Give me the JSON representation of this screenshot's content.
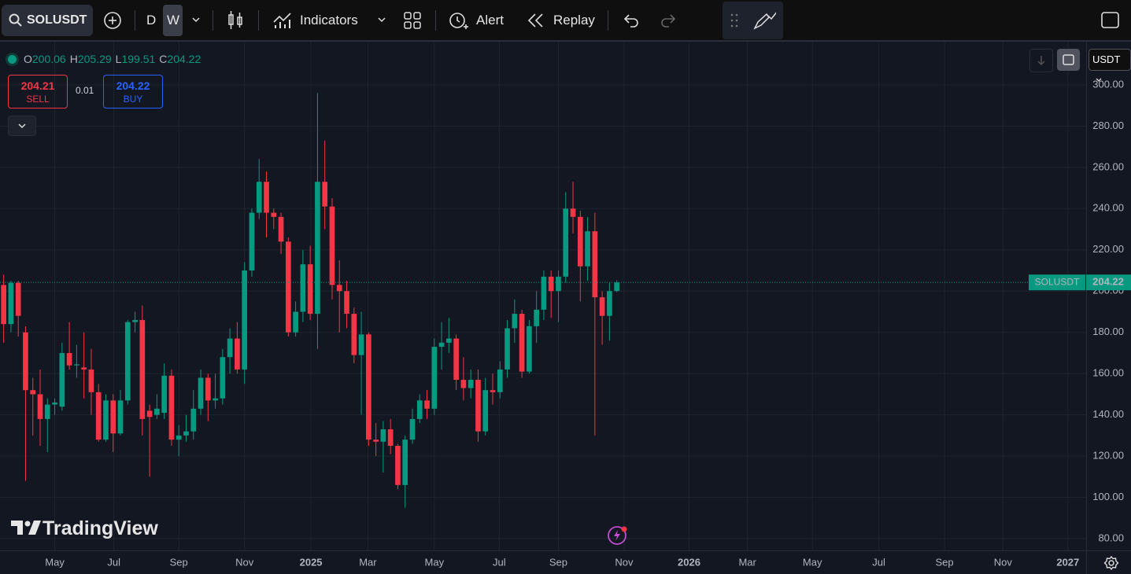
{
  "toolbar": {
    "symbol": "SOLUSDT",
    "intervals": [
      "D",
      "W"
    ],
    "indicators": "Indicators",
    "alert": "Alert",
    "replay": "Replay"
  },
  "trade": {
    "sell_price": 204.21,
    "sell": "SELL",
    "spread": 0.01,
    "buy_price": 204.22,
    "buy": "BUY"
  },
  "currency": "USDT",
  "watermark": "TradingView",
  "chart_data": {
    "type": "candlestick",
    "ohlc_labels": [
      "O",
      "H",
      "L",
      "C"
    ],
    "up_color": "#089981",
    "down_color": "#f23645",
    "open": [
      203,
      184,
      204,
      180,
      152,
      150,
      138,
      145,
      144,
      170,
      164,
      163,
      162,
      151,
      128,
      147,
      131,
      147,
      185,
      186,
      142,
      140,
      141,
      159,
      128,
      130,
      132,
      143,
      158,
      147,
      148,
      168,
      177,
      162,
      210,
      238,
      253,
      238,
      236,
      224,
      180,
      190,
      213,
      189,
      253,
      241,
      203,
      200,
      189,
      169,
      179,
      128,
      127,
      133,
      125,
      106,
      128,
      138,
      147,
      143,
      173,
      175,
      177,
      157,
      153,
      157,
      132,
      152,
      151,
      162,
      182,
      189,
      161,
      183,
      191,
      207,
      200,
      207,
      240,
      236,
      212,
      229,
      197,
      188,
      200.06
    ],
    "high": [
      208,
      205,
      205,
      183,
      158,
      162,
      148,
      148,
      175,
      185,
      174,
      180,
      172,
      155,
      150,
      150,
      152,
      186,
      190,
      193,
      145,
      150,
      165,
      162,
      135,
      140,
      152,
      162,
      160,
      160,
      172,
      182,
      185,
      214,
      240,
      264,
      258,
      240,
      238,
      226,
      195,
      220,
      222,
      296,
      273,
      245,
      215,
      205,
      192,
      190,
      180,
      136,
      137,
      138,
      126,
      130,
      143,
      150,
      152,
      177,
      185,
      187,
      179,
      168,
      162,
      162,
      158,
      160,
      166,
      186,
      196,
      191,
      186,
      200,
      210,
      210,
      210,
      248,
      253,
      239,
      236,
      238,
      200,
      204,
      205.29
    ],
    "low": [
      175,
      180,
      178,
      108,
      130,
      125,
      122,
      140,
      142,
      162,
      158,
      148,
      140,
      127,
      127,
      122,
      130,
      145,
      180,
      130,
      110,
      138,
      138,
      125,
      120,
      127,
      128,
      140,
      137,
      143,
      145,
      160,
      160,
      155,
      207,
      235,
      226,
      230,
      218,
      178,
      178,
      185,
      186,
      172,
      230,
      196,
      180,
      182,
      165,
      140,
      125,
      120,
      112,
      121,
      104,
      95,
      126,
      136,
      138,
      140,
      162,
      170,
      152,
      147,
      148,
      127,
      130,
      145,
      148,
      158,
      175,
      158,
      160,
      175,
      186,
      187,
      185,
      204,
      228,
      195,
      205,
      130,
      174,
      176,
      199.51
    ],
    "close": [
      184,
      204,
      188,
      152,
      150,
      138,
      145,
      146,
      170,
      164,
      164.5,
      162,
      151,
      128,
      147,
      131,
      147,
      185,
      186,
      138,
      139,
      143,
      159,
      128,
      130,
      132,
      143,
      158,
      147,
      148,
      168,
      177,
      162,
      210,
      238,
      253,
      238,
      236,
      224,
      180,
      190,
      213,
      189,
      253,
      241,
      203,
      200,
      189,
      169,
      179,
      128,
      127,
      133,
      125,
      106,
      128,
      138,
      147,
      143,
      173,
      175,
      177,
      157,
      153,
      157,
      132,
      152,
      151,
      162,
      182,
      189,
      161,
      183,
      191,
      207,
      200,
      207,
      240,
      236,
      212,
      229,
      197,
      188,
      200,
      204.22
    ],
    "xlim": [
      -0.5,
      148.3
    ],
    "xticks": [
      {
        "value": 7.0,
        "label": "May"
      },
      {
        "value": 15.1,
        "label": "Jul"
      },
      {
        "value": 24.0,
        "label": "Sep"
      },
      {
        "value": 33.0,
        "label": "Nov"
      },
      {
        "value": 42.1,
        "label": "2025"
      },
      {
        "value": 49.9,
        "label": "Mar"
      },
      {
        "value": 59.0,
        "label": "May"
      },
      {
        "value": 67.9,
        "label": "Jul"
      },
      {
        "value": 76.0,
        "label": "Sep"
      },
      {
        "value": 85.0,
        "label": "Nov"
      },
      {
        "value": 93.9,
        "label": "2026"
      },
      {
        "value": 101.9,
        "label": "Mar"
      },
      {
        "value": 110.8,
        "label": "May"
      },
      {
        "value": 119.9,
        "label": "Jul"
      },
      {
        "value": 128.9,
        "label": "Sep"
      },
      {
        "value": 136.9,
        "label": "Nov"
      },
      {
        "value": 145.8,
        "label": "2027"
      }
    ],
    "ylim": [
      74.3,
      319.4
    ],
    "yticks": [
      {
        "value": 80,
        "label": "80.00"
      },
      {
        "value": 100,
        "label": "100.00"
      },
      {
        "value": 120,
        "label": "120.00"
      },
      {
        "value": 140,
        "label": "140.00"
      },
      {
        "value": 160,
        "label": "160.00"
      },
      {
        "value": 180,
        "label": "180.00"
      },
      {
        "value": 200,
        "label": "200.00"
      },
      {
        "value": 220,
        "label": "220.00"
      },
      {
        "value": 240,
        "label": "240.00"
      },
      {
        "value": 260,
        "label": "260.00"
      },
      {
        "value": 280,
        "label": "280.00"
      },
      {
        "value": 300,
        "label": "300.00"
      }
    ],
    "grid": true
  }
}
